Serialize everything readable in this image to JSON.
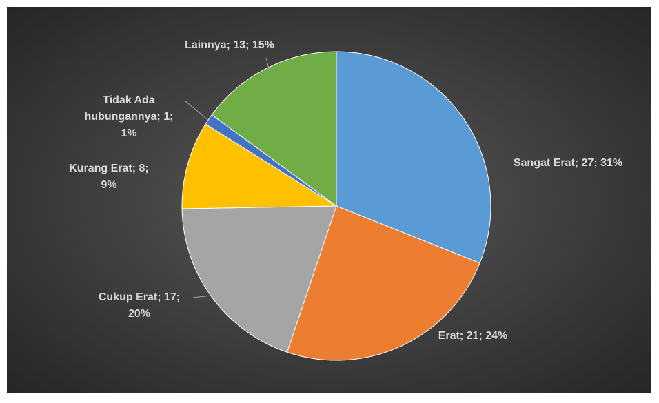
{
  "chart_data": {
    "type": "pie",
    "categories": [
      "Sangat Erat",
      "Erat",
      "Cukup Erat",
      "Kurang Erat",
      "Tidak Ada hubungannya",
      "Lainnya"
    ],
    "values": [
      27,
      21,
      17,
      8,
      1,
      13
    ],
    "value_labels": [
      "Sangat Erat; 27; 31%",
      "Erat; 21; 24%",
      "Cukup Erat; 17; 20%",
      "Kurang Erat; 8; 9%",
      "Tidak Ada hubungannya; 1; 1%",
      "Lainnya; 13; 15%"
    ],
    "colors": [
      "#5b9bd5",
      "#ed7d31",
      "#a5a5a5",
      "#ffc000",
      "#4472c4",
      "#70ad47"
    ]
  }
}
